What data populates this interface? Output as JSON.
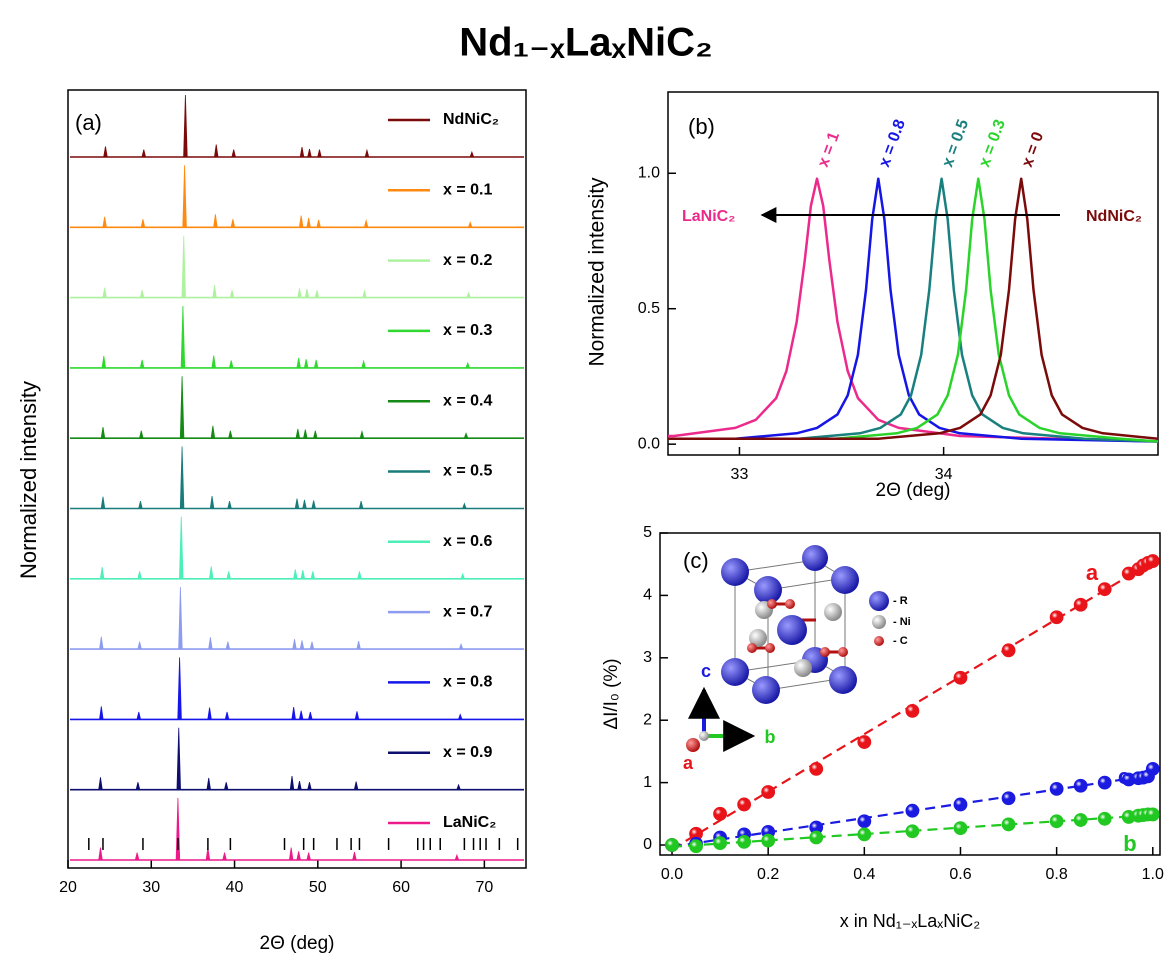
{
  "title": "Nd₁₋ₓLaₓNiC₂",
  "chart_data": [
    {
      "type": "stacked-spectra",
      "label": "(a)",
      "x_label": "2Θ (deg)",
      "y_label": "Normalized intensity",
      "xlim": [
        20,
        75
      ],
      "xticks": [
        20,
        30,
        40,
        50,
        60,
        70
      ],
      "series": [
        {
          "name": "NdNiC₂",
          "color": "#7b0a0a",
          "x": [
            24.5,
            29.1,
            34.1,
            37.8,
            39.9,
            48.1,
            49.0,
            50.2,
            55.9,
            68.5
          ],
          "values": [
            0.17,
            0.12,
            1.0,
            0.2,
            0.12,
            0.16,
            0.13,
            0.12,
            0.11,
            0.08
          ]
        },
        {
          "name": "x = 0.1",
          "color": "#ff8a12",
          "x": [
            24.4,
            29.0,
            34.0,
            37.7,
            39.8,
            48.0,
            48.9,
            50.1,
            55.8,
            68.3
          ],
          "values": [
            0.17,
            0.13,
            1.0,
            0.21,
            0.13,
            0.19,
            0.15,
            0.12,
            0.11,
            0.08
          ]
        },
        {
          "name": "x = 0.2",
          "color": "#aef2a0",
          "x": [
            24.4,
            28.9,
            33.9,
            37.6,
            39.7,
            47.8,
            48.7,
            49.9,
            55.6,
            68.1
          ],
          "values": [
            0.16,
            0.12,
            1.0,
            0.2,
            0.12,
            0.15,
            0.14,
            0.12,
            0.11,
            0.08
          ]
        },
        {
          "name": "x = 0.3",
          "color": "#2ed82e",
          "x": [
            24.3,
            28.9,
            33.8,
            37.5,
            39.6,
            47.7,
            48.6,
            49.8,
            55.5,
            68.0
          ],
          "values": [
            0.19,
            0.13,
            1.0,
            0.2,
            0.12,
            0.16,
            0.14,
            0.13,
            0.11,
            0.08
          ]
        },
        {
          "name": "x = 0.4",
          "color": "#168a16",
          "x": [
            24.2,
            28.8,
            33.7,
            37.4,
            39.5,
            47.6,
            48.5,
            49.7,
            55.3,
            67.8
          ],
          "values": [
            0.18,
            0.12,
            1.0,
            0.2,
            0.12,
            0.15,
            0.14,
            0.12,
            0.11,
            0.08
          ]
        },
        {
          "name": "x = 0.5",
          "color": "#1a7b7b",
          "x": [
            24.2,
            28.7,
            33.7,
            37.3,
            39.4,
            47.5,
            48.4,
            49.5,
            55.2,
            67.6
          ],
          "values": [
            0.19,
            0.12,
            1.0,
            0.2,
            0.12,
            0.16,
            0.14,
            0.13,
            0.12,
            0.08
          ]
        },
        {
          "name": "x = 0.6",
          "color": "#4cefb6",
          "x": [
            24.1,
            28.6,
            33.6,
            37.2,
            39.3,
            47.3,
            48.2,
            49.4,
            55.0,
            67.4
          ],
          "values": [
            0.19,
            0.12,
            1.0,
            0.2,
            0.12,
            0.15,
            0.14,
            0.12,
            0.12,
            0.08
          ]
        },
        {
          "name": "x = 0.7",
          "color": "#8e9cf0",
          "x": [
            24.0,
            28.6,
            33.5,
            37.1,
            39.2,
            47.2,
            48.1,
            49.3,
            54.9,
            67.2
          ],
          "values": [
            0.2,
            0.12,
            1.0,
            0.19,
            0.12,
            0.16,
            0.14,
            0.12,
            0.13,
            0.08
          ]
        },
        {
          "name": "x = 0.8",
          "color": "#1616ea",
          "x": [
            24.0,
            28.5,
            33.4,
            37.0,
            39.1,
            47.1,
            48.0,
            49.1,
            54.7,
            67.1
          ],
          "values": [
            0.21,
            0.12,
            1.0,
            0.19,
            0.12,
            0.2,
            0.14,
            0.12,
            0.13,
            0.08
          ]
        },
        {
          "name": "x = 0.9",
          "color": "#0e0e6e",
          "x": [
            23.9,
            28.4,
            33.3,
            36.9,
            39.0,
            46.9,
            47.8,
            49.0,
            54.6,
            66.9
          ],
          "values": [
            0.2,
            0.12,
            1.0,
            0.19,
            0.12,
            0.22,
            0.14,
            0.12,
            0.13,
            0.08
          ]
        },
        {
          "name": "LaNiC₂",
          "color": "#ec1a8a",
          "x": [
            23.9,
            28.3,
            33.2,
            36.8,
            38.8,
            46.8,
            47.7,
            48.9,
            54.4,
            66.7
          ],
          "values": [
            0.2,
            0.12,
            1.0,
            0.2,
            0.12,
            0.2,
            0.14,
            0.12,
            0.13,
            0.08
          ]
        }
      ],
      "reference_peaks": [
        22.5,
        24.2,
        29.0,
        33.2,
        36.8,
        39.5,
        46.0,
        48.3,
        49.5,
        52.3,
        54.0,
        55.0,
        58.5,
        62.0,
        62.7,
        63.5,
        64.7,
        67.6,
        68.7,
        69.5,
        70.2,
        71.8,
        74.0
      ]
    },
    {
      "type": "line",
      "label": "(b)",
      "x_label": "2Θ (deg)",
      "y_label": "Normalized intensity",
      "xlim": [
        32.65,
        35.05
      ],
      "xticks": [
        33,
        34
      ],
      "ylim": [
        -0.04,
        1.3
      ],
      "yticks": [
        {
          "value": 0,
          "label": "0.0"
        },
        {
          "value": 0.5,
          "label": "0.5"
        },
        {
          "value": 1,
          "label": "1.0"
        }
      ],
      "series": [
        {
          "name": "x = 1",
          "color": "#ec2a8c",
          "x": [
            32.65,
            32.68,
            32.98,
            33.08,
            33.18,
            33.23,
            33.28,
            33.32,
            33.35,
            33.38,
            33.41,
            33.44,
            33.48,
            33.53,
            33.58,
            33.68,
            33.78,
            34.08,
            35.05
          ],
          "values": [
            0.03,
            0.03,
            0.06,
            0.09,
            0.17,
            0.27,
            0.45,
            0.68,
            0.88,
            0.98,
            0.88,
            0.68,
            0.45,
            0.27,
            0.17,
            0.09,
            0.06,
            0.03,
            0.01
          ]
        },
        {
          "name": "x = 0.8",
          "color": "#1515e6",
          "x": [
            32.65,
            32.98,
            33.28,
            33.38,
            33.48,
            33.53,
            33.58,
            33.62,
            33.65,
            33.68,
            33.71,
            33.74,
            33.78,
            33.83,
            33.88,
            33.98,
            34.08,
            34.38,
            35.05
          ],
          "values": [
            0.02,
            0.02,
            0.04,
            0.06,
            0.11,
            0.18,
            0.33,
            0.57,
            0.83,
            0.98,
            0.83,
            0.57,
            0.33,
            0.18,
            0.11,
            0.06,
            0.04,
            0.02,
            0.01
          ]
        },
        {
          "name": "x = 0.5",
          "color": "#1a7f7f",
          "x": [
            32.65,
            33.29,
            33.59,
            33.69,
            33.79,
            33.84,
            33.89,
            33.93,
            33.96,
            33.99,
            34.02,
            34.05,
            34.09,
            34.14,
            34.19,
            34.29,
            34.39,
            34.69,
            35.05
          ],
          "values": [
            0.02,
            0.02,
            0.04,
            0.06,
            0.11,
            0.18,
            0.33,
            0.57,
            0.83,
            0.98,
            0.83,
            0.57,
            0.33,
            0.18,
            0.11,
            0.06,
            0.04,
            0.02,
            0.01
          ]
        },
        {
          "name": "x = 0.3",
          "color": "#2bd42b",
          "x": [
            32.65,
            33.47,
            33.77,
            33.87,
            33.97,
            34.02,
            34.07,
            34.11,
            34.14,
            34.17,
            34.2,
            34.23,
            34.27,
            34.32,
            34.37,
            34.47,
            34.57,
            34.87,
            35.05
          ],
          "values": [
            0.02,
            0.02,
            0.04,
            0.06,
            0.11,
            0.18,
            0.33,
            0.57,
            0.83,
            0.98,
            0.83,
            0.57,
            0.33,
            0.18,
            0.11,
            0.06,
            0.04,
            0.02,
            0.01
          ]
        },
        {
          "name": "x = 0",
          "color": "#7b0a0a",
          "x": [
            32.65,
            33.68,
            33.98,
            34.08,
            34.18,
            34.23,
            34.28,
            34.32,
            34.35,
            34.38,
            34.41,
            34.44,
            34.48,
            34.53,
            34.58,
            34.68,
            34.78,
            35.05
          ],
          "values": [
            0.02,
            0.02,
            0.04,
            0.06,
            0.11,
            0.18,
            0.33,
            0.57,
            0.83,
            0.98,
            0.83,
            0.57,
            0.33,
            0.18,
            0.11,
            0.06,
            0.04,
            0.02
          ]
        }
      ],
      "annotations": [
        {
          "text": "LaNiC₂",
          "color": "#ec2a8c"
        },
        {
          "text": "NdNiC₂",
          "color": "#7b0a0a"
        }
      ]
    },
    {
      "type": "scatter",
      "label": "(c)",
      "x_label": "x in Nd₁₋ₓLaₓNiC₂",
      "y_label": "ΔI/I₀ (%)",
      "xlim": [
        -0.025,
        1.015
      ],
      "ylim": [
        -0.16,
        5
      ],
      "xticks": [
        {
          "value": 0,
          "label": "0.0"
        },
        {
          "value": 0.2,
          "label": "0.2"
        },
        {
          "value": 0.4,
          "label": "0.4"
        },
        {
          "value": 0.6,
          "label": "0.6"
        },
        {
          "value": 0.8,
          "label": "0.8"
        },
        {
          "value": 1,
          "label": "1.0"
        }
      ],
      "yticks": [
        0,
        1,
        2,
        3,
        4,
        5
      ],
      "x": [
        0,
        0.05,
        0.1,
        0.15,
        0.2,
        0.3,
        0.4,
        0.5,
        0.6,
        0.7,
        0.8,
        0.85,
        0.9,
        0.95,
        0.97,
        0.98,
        0.99,
        1.0
      ],
      "series": [
        {
          "name": "a",
          "color": "#e8141a",
          "values": [
            0,
            0.18,
            0.5,
            0.65,
            0.85,
            1.22,
            1.65,
            2.15,
            2.68,
            3.12,
            3.65,
            3.85,
            4.1,
            4.35,
            4.42,
            4.48,
            4.52,
            4.55
          ]
        },
        {
          "name": "c",
          "color": "#1a1ae0",
          "values": [
            0,
            0.02,
            0.12,
            0.17,
            0.21,
            0.28,
            0.38,
            0.55,
            0.65,
            0.75,
            0.9,
            0.95,
            1.0,
            1.05,
            1.07,
            1.08,
            1.1,
            1.22
          ]
        },
        {
          "name": "b",
          "color": "#22c822",
          "values": [
            0,
            -0.02,
            0.03,
            0.05,
            0.07,
            0.12,
            0.17,
            0.22,
            0.27,
            0.33,
            0.38,
            0.4,
            0.42,
            0.45,
            0.47,
            0.48,
            0.49,
            0.49
          ]
        }
      ],
      "inset": {
        "legend": [
          "- R",
          "- Ni",
          "- C"
        ],
        "axes": [
          "a",
          "b",
          "c"
        ]
      }
    }
  ]
}
